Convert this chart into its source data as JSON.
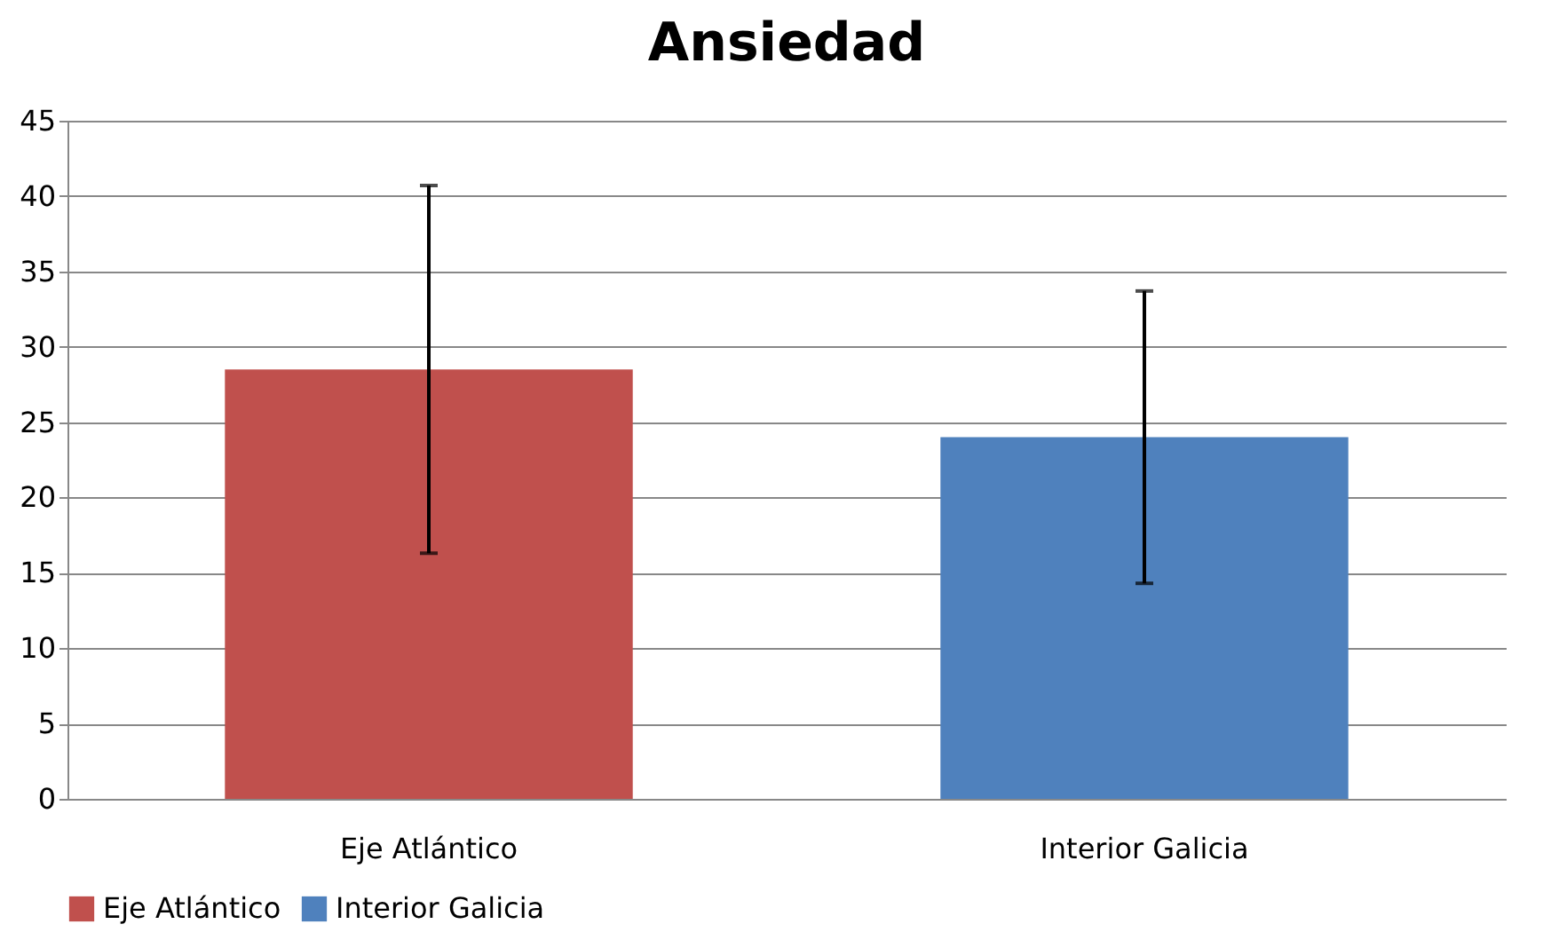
{
  "chart_data": {
    "type": "bar",
    "title": "Ansiedad",
    "categories": [
      "Eje Atlántico",
      "Interior Galicia"
    ],
    "series": [
      {
        "name": "Eje Atlántico",
        "color": "#c0504d",
        "values": [
          28.5,
          null
        ],
        "errors": [
          12.2,
          null
        ]
      },
      {
        "name": "Interior Galicia",
        "color": "#4f81bd",
        "values": [
          null,
          24.0
        ],
        "errors": [
          null,
          9.7
        ]
      }
    ],
    "ylim": [
      0,
      45
    ],
    "yticks": [
      0,
      5,
      10,
      15,
      20,
      25,
      30,
      35,
      40,
      45
    ],
    "grid": "y",
    "legend": "bottom"
  }
}
